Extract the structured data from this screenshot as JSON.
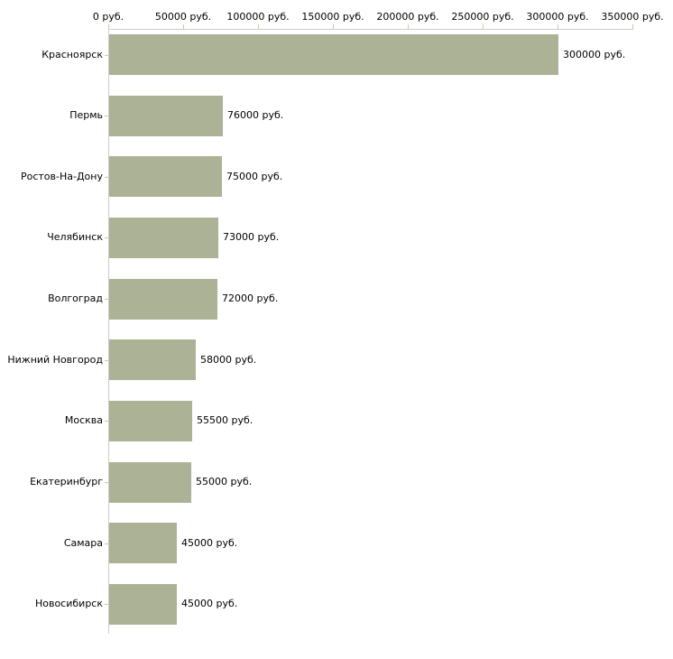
{
  "chart_data": {
    "type": "bar",
    "orientation": "horizontal",
    "title": "",
    "xlabel": "",
    "ylabel": "",
    "unit": "руб.",
    "grid": false,
    "legend": false,
    "xlim": [
      0,
      350000
    ],
    "categories": [
      "Красноярск",
      "Пермь",
      "Ростов-На-Дону",
      "Челябинск",
      "Волгоград",
      "Нижний Новгород",
      "Москва",
      "Екатеринбург",
      "Самара",
      "Новосибирск"
    ],
    "values": [
      300000,
      76000,
      75000,
      73000,
      72000,
      58000,
      55500,
      55000,
      45000,
      45000
    ],
    "value_labels": [
      "300000 руб.",
      "76000 руб.",
      "75000 руб.",
      "73000 руб.",
      "72000 руб.",
      "58000 руб.",
      "55500 руб.",
      "55000 руб.",
      "45000 руб.",
      "45000 руб."
    ],
    "x_tick_values": [
      0,
      50000,
      100000,
      150000,
      200000,
      250000,
      300000,
      350000
    ],
    "x_tick_labels": [
      "0 руб.",
      "50000 руб.",
      "100000 руб.",
      "150000 руб.",
      "200000 руб.",
      "250000 руб.",
      "300000 руб.",
      "350000 руб."
    ],
    "colors": {
      "bar": "#abb295",
      "axis_line": "#cccccc",
      "tick": "#ccc9a0",
      "text": "#000000",
      "background": "#ffffff"
    }
  }
}
